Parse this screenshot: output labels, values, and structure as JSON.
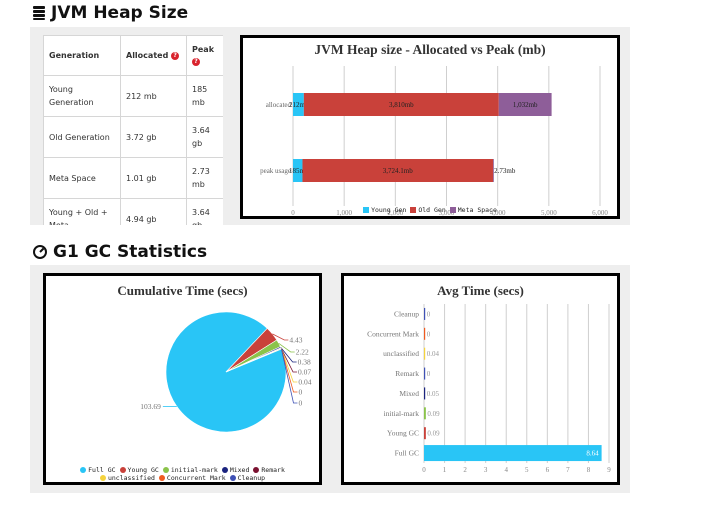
{
  "heap_section": {
    "title": "JVM Heap Size",
    "table": {
      "headers": {
        "generation": "Generation",
        "allocated": "Allocated",
        "peak": "Peak"
      },
      "rows": [
        {
          "generation": "Young Generation",
          "allocated": "212 mb",
          "peak": "185 mb"
        },
        {
          "generation": "Old Generation",
          "allocated": "3.72 gb",
          "peak": "3.64 gb"
        },
        {
          "generation": "Meta Space",
          "allocated": "1.01 gb",
          "peak": "2.73 mb"
        },
        {
          "generation": "Young + Old + Meta",
          "allocated": "4.94 gb",
          "peak": "3.64 gb"
        }
      ]
    }
  },
  "gc_section": {
    "title": "G1 GC Statistics"
  },
  "chart_data": [
    {
      "type": "bar",
      "orientation": "horizontal",
      "stacked": true,
      "title": "JVM Heap size - Allocated vs Peak (mb)",
      "categories": [
        "allocated",
        "peak usage"
      ],
      "x_ticks": [
        "0",
        "1,000",
        "2,000",
        "3,000",
        "4,000",
        "5,000",
        "6,000"
      ],
      "xlim": [
        0,
        6000
      ],
      "series": [
        {
          "name": "Young Gen",
          "color": "#29c5f6",
          "values": [
            212,
            185
          ],
          "labels": [
            "212mb",
            "185mb"
          ]
        },
        {
          "name": "Old Gen",
          "color": "#c9413a",
          "values": [
            3810,
            3724.1
          ],
          "labels": [
            "3,810mb",
            "3,724.1mb"
          ]
        },
        {
          "name": "Meta Space",
          "color": "#8e5e99",
          "values": [
            1032,
            2.73
          ],
          "labels": [
            "1,032mb",
            "2.73mb"
          ]
        }
      ],
      "legend": "bottom",
      "grid": true
    },
    {
      "type": "pie",
      "title": "Cumulative Time (secs)",
      "slices": [
        {
          "name": "Full GC",
          "value": 103.69,
          "label": "103.69",
          "color": "#29c5f6"
        },
        {
          "name": "Young GC",
          "value": 4.43,
          "label": "4.43",
          "color": "#c9413a"
        },
        {
          "name": "initial-mark",
          "value": 2.22,
          "label": "2.22",
          "color": "#8bc34a"
        },
        {
          "name": "Mixed",
          "value": 0.38,
          "label": "0.38",
          "color": "#1a237e"
        },
        {
          "name": "Remark",
          "value": 0.07,
          "label": "0.07",
          "color": "#7b1231"
        },
        {
          "name": "unclassified",
          "value": 0.04,
          "label": "0.04",
          "color": "#f5d33d"
        },
        {
          "name": "Concurrent Mark",
          "value": 0,
          "label": "0",
          "color": "#ef5a1f"
        },
        {
          "name": "Cleanup",
          "value": 0,
          "label": "0",
          "color": "#3f51b5"
        }
      ],
      "legend": "bottom"
    },
    {
      "type": "bar",
      "orientation": "horizontal",
      "title": "Avg Time (secs)",
      "categories": [
        "Cleanup",
        "Concurrent Mark",
        "unclassified",
        "Remark",
        "Mixed",
        "initial-mark",
        "Young GC",
        "Full GC"
      ],
      "values": [
        0,
        0,
        0.04,
        0,
        0.05,
        0.09,
        0.09,
        8.64
      ],
      "labels": [
        "0",
        "0",
        "0.04",
        "0",
        "0.05",
        "0.09",
        "0.09",
        "8.64"
      ],
      "colors": [
        "#3f51b5",
        "#ef5a1f",
        "#f5d33d",
        "#3f51b5",
        "#1a237e",
        "#8bc34a",
        "#c9413a",
        "#29c5f6"
      ],
      "x_ticks": [
        "0",
        "1",
        "2",
        "3",
        "4",
        "5",
        "6",
        "7",
        "8",
        "9"
      ],
      "xlim": [
        0,
        9
      ],
      "grid": true
    }
  ]
}
